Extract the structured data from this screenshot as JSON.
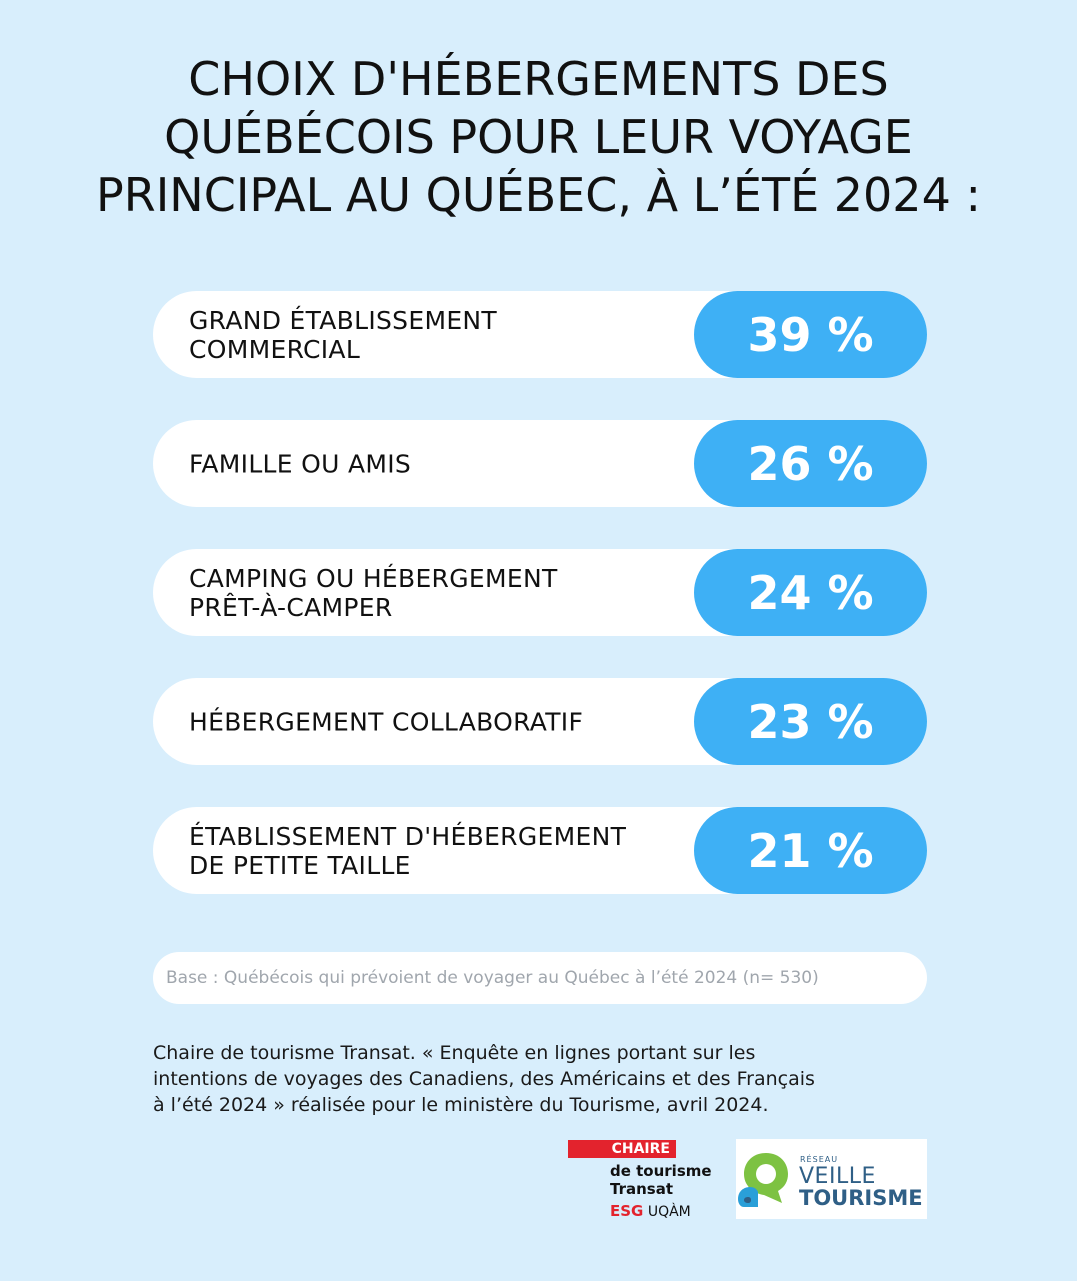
{
  "title": {
    "line1": "CHOIX D'HÉBERGEMENTS DES",
    "line2": "QUÉBÉCOIS POUR LEUR VOYAGE",
    "line3": "PRINCIPAL AU QUÉBEC, À L’ÉTÉ 2024 :"
  },
  "rows": [
    {
      "line1": "GRAND ÉTABLISSEMENT",
      "line2": "COMMERCIAL",
      "value": "39 %"
    },
    {
      "line1": "FAMILLE OU AMIS",
      "line2": "",
      "value": "26 %"
    },
    {
      "line1": "CAMPING OU HÉBERGEMENT",
      "line2": "PRÊT-À-CAMPER",
      "value": "24 %"
    },
    {
      "line1": "HÉBERGEMENT COLLABORATIF",
      "line2": "",
      "value": "23 %"
    },
    {
      "line1": "ÉTABLISSEMENT D'HÉBERGEMENT",
      "line2": "DE PETITE TAILLE",
      "value": "21 %"
    }
  ],
  "base_note": "Base : Québécois qui prévoient de voyager au Québec à l’été 2024 (n= 530)",
  "source": {
    "line1": "Chaire de tourisme Transat. « Enquête en lignes portant sur les",
    "line2": "intentions de voyages des Canadiens, des Américains et des Français",
    "line3": "à l’été 2024 » réalisée pour le ministère du Tourisme, avril 2024."
  },
  "logo_chaire": {
    "bar": "CHAIRE",
    "line2": "de tourisme",
    "line3": "Transat",
    "esg": "ESG",
    "uqam": "UQÀM",
    "color": "#e3232d"
  },
  "logo_reseau": {
    "small": "RÉSEAU",
    "line1": "VEILLE",
    "line2": "TOURISME",
    "icon": "location-pin-icon",
    "colors": [
      "#7dc242",
      "#2a9fd8",
      "#2f5f86"
    ]
  },
  "colors": {
    "background": "#d8eefc",
    "pill": "#3eb0f5"
  }
}
